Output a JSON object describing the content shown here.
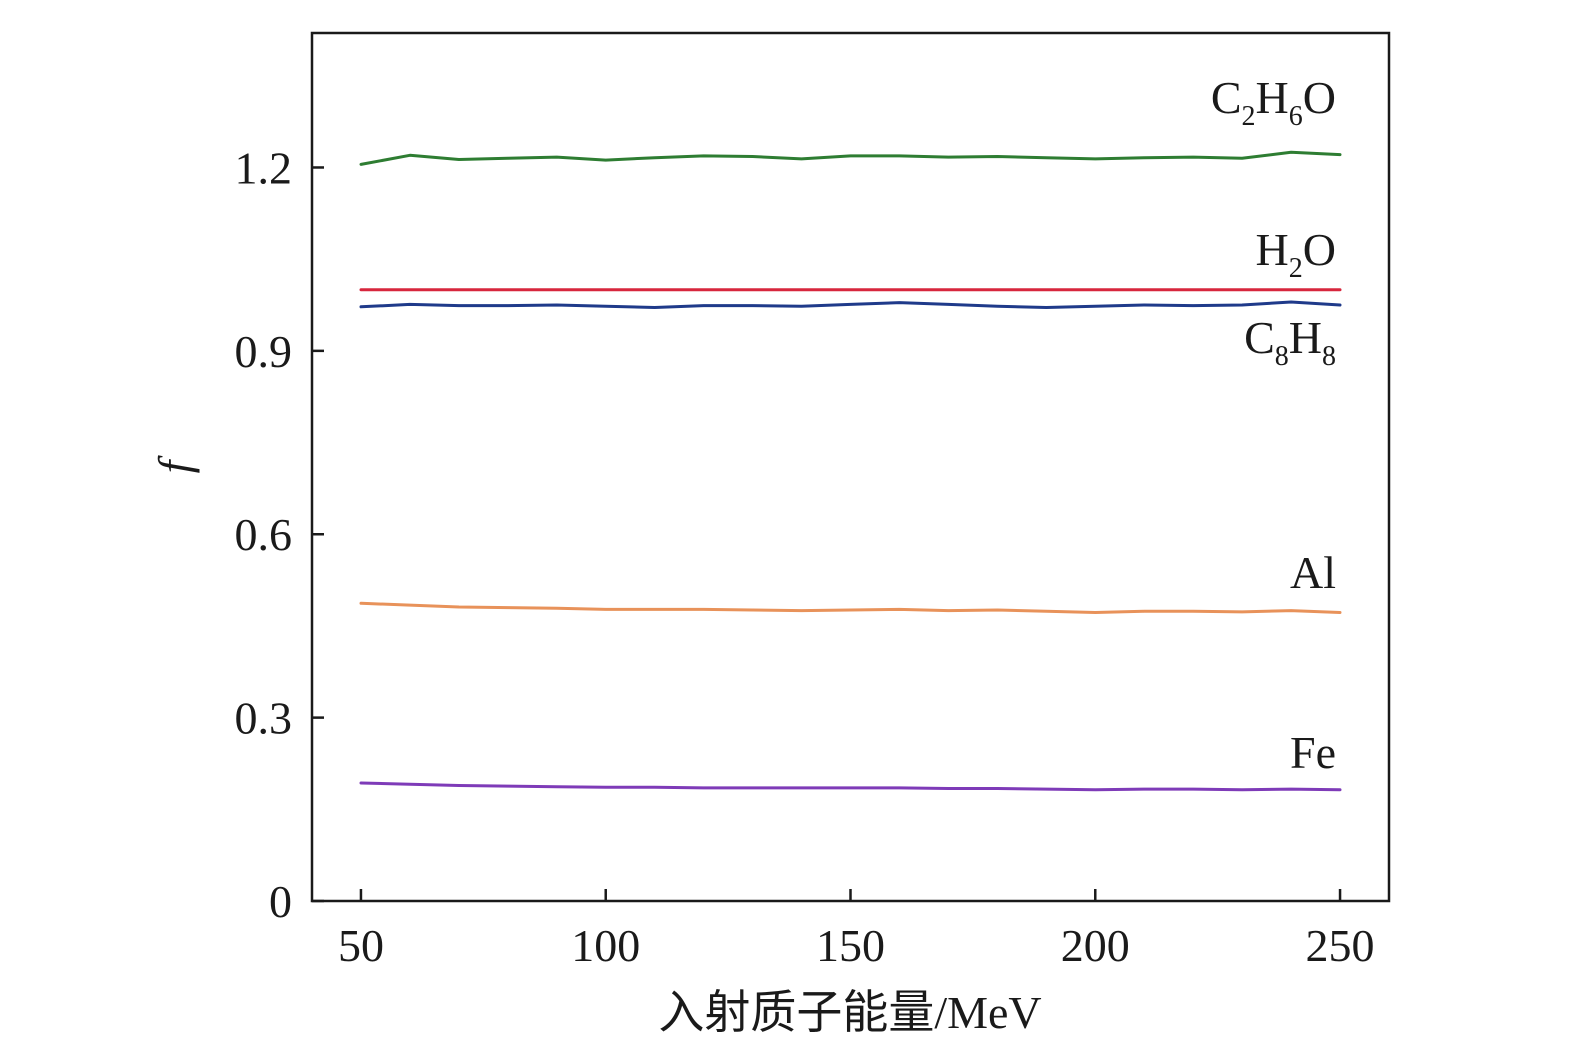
{
  "chart_data": {
    "type": "line",
    "title": "",
    "xlabel": "入射质子能量/MeV",
    "ylabel": "f",
    "xlim": [
      40,
      260
    ],
    "ylim": [
      0,
      1.42
    ],
    "xticks": [
      50,
      100,
      150,
      200,
      250
    ],
    "yticks": [
      0,
      0.3,
      0.6,
      0.9,
      1.2
    ],
    "xtick_labels": [
      "50",
      "100",
      "150",
      "200",
      "250"
    ],
    "ytick_labels": [
      "0",
      "0.3",
      "0.6",
      "0.9",
      "1.2"
    ],
    "grid": false,
    "legend": "inline labels at right end of each line",
    "x": [
      50,
      60,
      70,
      80,
      90,
      100,
      110,
      120,
      130,
      140,
      150,
      160,
      170,
      180,
      190,
      200,
      210,
      220,
      230,
      240,
      250
    ],
    "series": [
      {
        "name": "C2H6O",
        "label_main": "C",
        "label_sub1": "2",
        "label_mid": "H",
        "label_sub2": "6",
        "label_end": "O",
        "color": "#2e7d32",
        "values": [
          1.205,
          1.22,
          1.213,
          1.215,
          1.217,
          1.212,
          1.216,
          1.219,
          1.218,
          1.214,
          1.219,
          1.219,
          1.217,
          1.218,
          1.216,
          1.214,
          1.216,
          1.217,
          1.215,
          1.225,
          1.221
        ]
      },
      {
        "name": "H2O",
        "label_main": "H",
        "label_sub1": "2",
        "label_mid": "O",
        "label_sub2": "",
        "label_end": "",
        "color": "#d7263d",
        "values": [
          1.0,
          1.0,
          1.0,
          1.0,
          1.0,
          1.0,
          1.0,
          1.0,
          1.0,
          1.0,
          1.0,
          1.0,
          1.0,
          1.0,
          1.0,
          1.0,
          1.0,
          1.0,
          1.0,
          1.0,
          1.0
        ]
      },
      {
        "name": "C8H8",
        "label_main": "C",
        "label_sub1": "8",
        "label_mid": "H",
        "label_sub2": "8",
        "label_end": "",
        "color": "#1f3a8a",
        "values": [
          0.972,
          0.976,
          0.974,
          0.974,
          0.975,
          0.973,
          0.971,
          0.974,
          0.974,
          0.973,
          0.976,
          0.979,
          0.976,
          0.973,
          0.971,
          0.973,
          0.975,
          0.974,
          0.975,
          0.98,
          0.975
        ]
      },
      {
        "name": "Al",
        "label_main": "Al",
        "label_sub1": "",
        "label_mid": "",
        "label_sub2": "",
        "label_end": "",
        "color": "#e8925a",
        "values": [
          0.487,
          0.484,
          0.481,
          0.48,
          0.479,
          0.477,
          0.477,
          0.477,
          0.476,
          0.475,
          0.476,
          0.477,
          0.475,
          0.476,
          0.474,
          0.472,
          0.474,
          0.474,
          0.473,
          0.475,
          0.472
        ]
      },
      {
        "name": "Fe",
        "label_main": "Fe",
        "label_sub1": "",
        "label_mid": "",
        "label_sub2": "",
        "label_end": "",
        "color": "#7e3bb8",
        "values": [
          0.193,
          0.191,
          0.189,
          0.188,
          0.187,
          0.186,
          0.186,
          0.185,
          0.185,
          0.185,
          0.185,
          0.185,
          0.184,
          0.184,
          0.183,
          0.182,
          0.183,
          0.183,
          0.182,
          0.183,
          0.182
        ]
      }
    ]
  }
}
